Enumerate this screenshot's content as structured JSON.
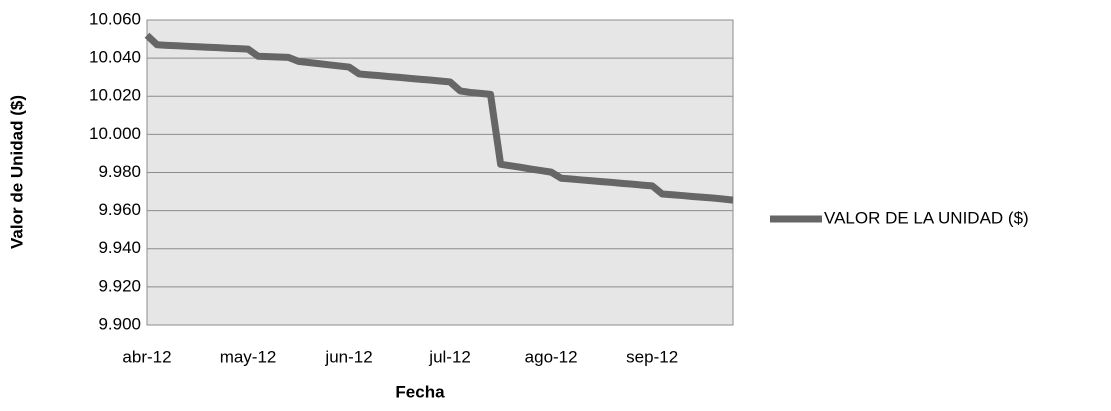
{
  "chart_data": {
    "type": "line",
    "x_label": "Fecha",
    "y_label": "Valor de Unidad ($)",
    "categories": [
      "abr-12",
      null,
      null,
      null,
      null,
      null,
      null,
      null,
      null,
      null,
      "may-12",
      null,
      null,
      null,
      null,
      null,
      null,
      null,
      null,
      null,
      "jun-12",
      null,
      null,
      null,
      null,
      null,
      null,
      null,
      null,
      null,
      "jul-12",
      null,
      null,
      null,
      null,
      null,
      null,
      null,
      null,
      null,
      "ago-12",
      null,
      null,
      null,
      null,
      null,
      null,
      null,
      null,
      null,
      "sep-12",
      null,
      null,
      null,
      null,
      null,
      null,
      null,
      null
    ],
    "series": [
      {
        "name": "VALOR DE LA UNIDAD ($)",
        "color": "#666666",
        "values": [
          10052,
          10047,
          10046.7,
          10046.5,
          10046.2,
          10046,
          10045.7,
          10045.5,
          10045.2,
          10045,
          10044.7,
          10041,
          10040.8,
          10040.6,
          10040.4,
          10038.3,
          10037.7,
          10037.1,
          10036.5,
          10035.9,
          10035.3,
          10031.7,
          10031.2,
          10030.8,
          10030.3,
          10029.9,
          10029.4,
          10028.9,
          10028.5,
          10028,
          10027.5,
          10022.8,
          10022,
          10021.5,
          10021,
          9984.3,
          9983.5,
          9982.7,
          9981.8,
          9981,
          9980.2,
          9977,
          9976.6,
          9976.1,
          9975.7,
          9975.2,
          9974.8,
          9974.3,
          9973.9,
          9973.4,
          9973,
          9968.7,
          9968.3,
          9967.9,
          9967.4,
          9967,
          9966.6,
          9966.1,
          9965.5
        ]
      }
    ],
    "ylim": [
      9900,
      10060
    ],
    "yticks": [
      {
        "value": 9900,
        "label": "9.900"
      },
      {
        "value": 9920,
        "label": "9.920"
      },
      {
        "value": 9940,
        "label": "9.940"
      },
      {
        "value": 9960,
        "label": "9.960"
      },
      {
        "value": 9980,
        "label": "9.980"
      },
      {
        "value": 10000,
        "label": "10.000"
      },
      {
        "value": 10020,
        "label": "10.020"
      },
      {
        "value": 10040,
        "label": "10.040"
      },
      {
        "value": 10060,
        "label": "10.060"
      }
    ],
    "grid": true,
    "legend": "right"
  }
}
